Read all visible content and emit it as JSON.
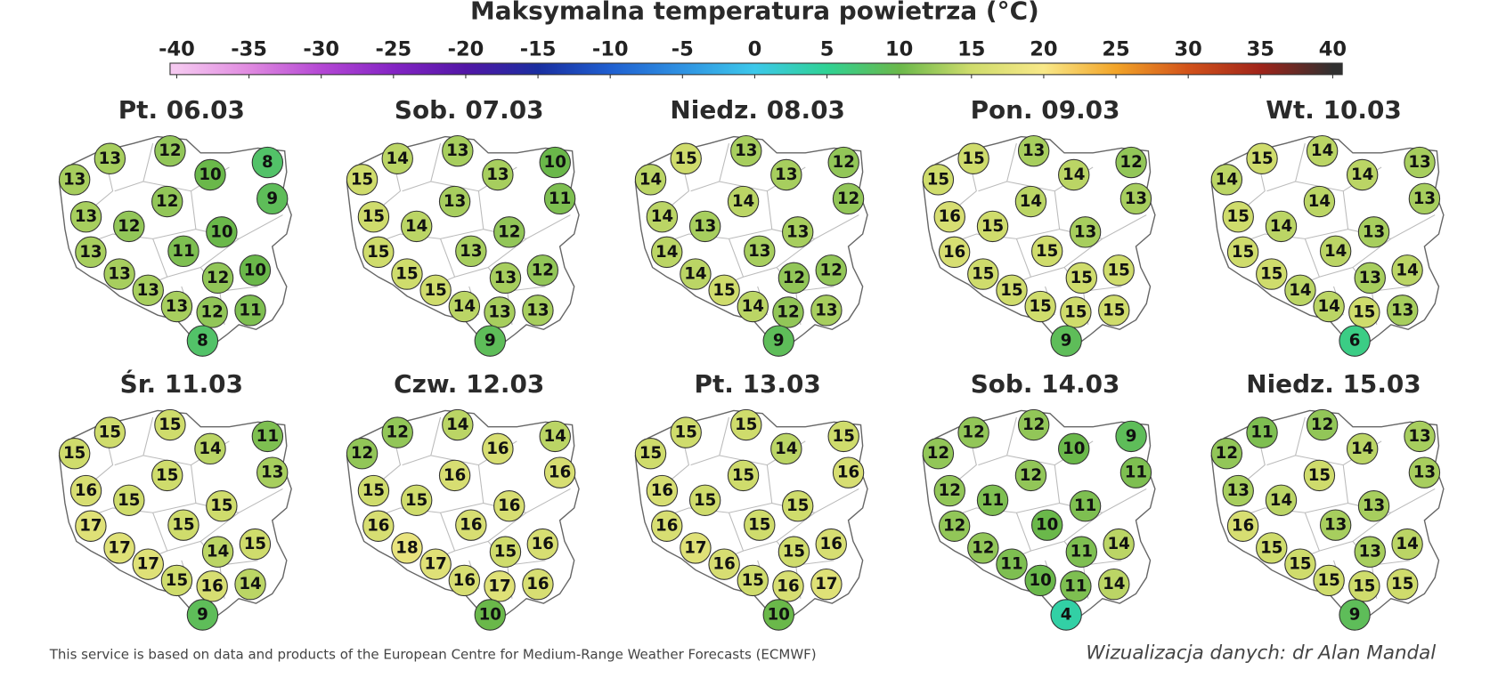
{
  "title": "Maksymalna temperatura powietrza (°C)",
  "colorbar": {
    "lim": [
      -40,
      40
    ],
    "ticks": [
      -40,
      -35,
      -30,
      -25,
      -20,
      -15,
      -10,
      -5,
      0,
      5,
      10,
      15,
      20,
      25,
      30,
      35,
      40
    ],
    "colors": [
      "#f5c8f0",
      "#e08ae0",
      "#b447d4",
      "#8424c4",
      "#5216a6",
      "#1a2ea0",
      "#1f5fd0",
      "#2f92e2",
      "#3cc8ea",
      "#2fd294",
      "#6ab84a",
      "#cfdc6c",
      "#f8e888",
      "#f2a428",
      "#d2521a",
      "#a0241a",
      "#303030"
    ]
  },
  "maps": [
    {
      "label": "Pt. 06.03",
      "values": [
        13,
        12,
        8,
        13,
        10,
        9,
        12,
        13,
        12,
        10,
        13,
        11,
        13,
        12,
        10,
        13,
        13,
        12,
        11,
        8
      ]
    },
    {
      "label": "Sob. 07.03",
      "values": [
        14,
        13,
        10,
        15,
        13,
        11,
        13,
        15,
        14,
        12,
        15,
        13,
        15,
        13,
        12,
        15,
        14,
        13,
        13,
        9
      ]
    },
    {
      "label": "Niedz. 08.03",
      "values": [
        15,
        13,
        12,
        14,
        13,
        12,
        14,
        14,
        13,
        13,
        14,
        13,
        14,
        12,
        12,
        15,
        14,
        12,
        13,
        9
      ]
    },
    {
      "label": "Pon. 09.03",
      "values": [
        15,
        13,
        12,
        15,
        14,
        13,
        14,
        16,
        15,
        13,
        16,
        15,
        15,
        15,
        15,
        15,
        15,
        15,
        15,
        9
      ]
    },
    {
      "label": "Wt. 10.03",
      "values": [
        15,
        14,
        13,
        14,
        14,
        13,
        14,
        15,
        14,
        13,
        15,
        14,
        15,
        13,
        14,
        14,
        14,
        15,
        13,
        6
      ]
    },
    {
      "label": "Śr. 11.03",
      "values": [
        15,
        15,
        11,
        15,
        14,
        13,
        15,
        16,
        15,
        15,
        17,
        15,
        17,
        14,
        15,
        17,
        15,
        16,
        14,
        9
      ]
    },
    {
      "label": "Czw. 12.03",
      "values": [
        12,
        14,
        14,
        12,
        16,
        16,
        16,
        15,
        15,
        16,
        16,
        16,
        18,
        15,
        16,
        17,
        16,
        17,
        16,
        10
      ]
    },
    {
      "label": "Pt. 13.03",
      "values": [
        15,
        15,
        15,
        15,
        14,
        16,
        15,
        16,
        15,
        15,
        16,
        15,
        17,
        15,
        16,
        16,
        15,
        16,
        17,
        10
      ]
    },
    {
      "label": "Sob. 14.03",
      "values": [
        12,
        12,
        9,
        12,
        10,
        11,
        12,
        12,
        11,
        11,
        12,
        10,
        12,
        11,
        14,
        11,
        10,
        11,
        14,
        4
      ]
    },
    {
      "label": "Niedz. 15.03",
      "values": [
        11,
        12,
        13,
        12,
        14,
        13,
        15,
        13,
        14,
        13,
        16,
        13,
        15,
        13,
        14,
        15,
        15,
        15,
        15,
        9
      ]
    }
  ],
  "footer": {
    "source": "This service is based on data and products of the European Centre for Medium-Range Weather Forecasts (ECMWF)",
    "credit": "Wizualizacja danych: dr Alan Mandal"
  }
}
